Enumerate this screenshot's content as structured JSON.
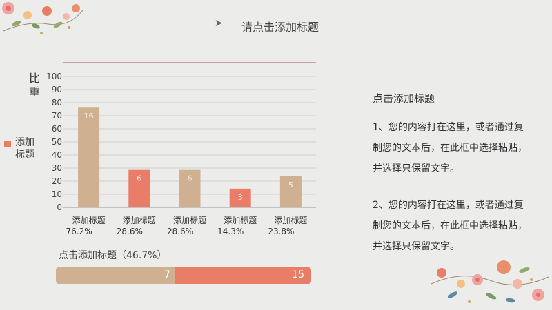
{
  "header": {
    "title": "请点击添加标题"
  },
  "colors": {
    "bar_beige": "#cfb090",
    "bar_coral": "#e97d68",
    "grid": "#cfcfcf",
    "track_beige": "#cfb090",
    "track_coral": "#e97d68"
  },
  "chart_data": {
    "type": "bar",
    "title": "",
    "ylabel": "比重",
    "xlabel": "",
    "ylim": [
      0,
      100
    ],
    "yticks": [
      0,
      10,
      20,
      30,
      40,
      50,
      60,
      70,
      80,
      90,
      100
    ],
    "grid": true,
    "legend": {
      "placement": "left",
      "entries": [
        {
          "name": "添加标题",
          "color": "#e97d68"
        }
      ]
    },
    "categories": [
      {
        "name": "添加标题",
        "percent": "76.2%"
      },
      {
        "name": "添加标题",
        "percent": "28.6%"
      },
      {
        "name": "添加标题",
        "percent": "28.6%"
      },
      {
        "name": "添加标题",
        "percent": "14.3%"
      },
      {
        "name": "添加标题",
        "percent": "23.8%"
      }
    ],
    "values": [
      76.2,
      28.6,
      28.6,
      14.3,
      23.8
    ],
    "data_labels": [
      "16",
      "6",
      "6",
      "3",
      "5"
    ],
    "bar_colors": [
      "#cfb090",
      "#e97d68",
      "#cfb090",
      "#e97d68",
      "#cfb090"
    ]
  },
  "progress": {
    "label": "点击添加标题（46.7%）",
    "fraction": 0.467,
    "value_a": "7",
    "value_b": "15"
  },
  "side": {
    "title": "点击添加标题",
    "para1": "1、您的内容打在这里，或者通过复制您的文本后，在此框中选择粘贴，并选择只保留文字。",
    "para2": "2、您的内容打在这里，或者通过复制您的文本后，在此框中选择粘贴，并选择只保留文字。"
  }
}
